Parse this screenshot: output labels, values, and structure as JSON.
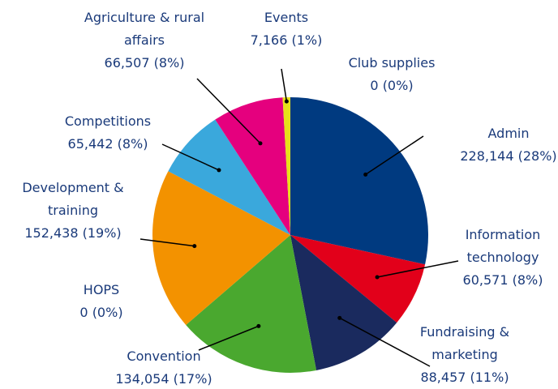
{
  "chart_data": {
    "type": "pie",
    "categories": [
      "Club supplies",
      "Admin",
      "Information technology",
      "Fundraising & marketing",
      "Convention",
      "HOPS",
      "Development & training",
      "Competitions",
      "Agriculture & rural affairs",
      "Events"
    ],
    "values": [
      0,
      228144,
      60571,
      88457,
      134054,
      0,
      152438,
      65442,
      66507,
      7166
    ],
    "value_labels": [
      "0 (0%)",
      "228,144 (28%)",
      "60,571 (8%)",
      "88,457 (11%)",
      "134,054 (17%)",
      "0 (0%)",
      "152,438 (19%)",
      "65,442 (8%)",
      "66,507 (8%)",
      "7,166 (1%)"
    ],
    "colors": [
      "#7a7a7a",
      "#003a80",
      "#e2001a",
      "#1a2a5e",
      "#4aa82f",
      "#9a9a9a",
      "#f39200",
      "#3aa8dc",
      "#e5007e",
      "#e6e01a"
    ]
  }
}
